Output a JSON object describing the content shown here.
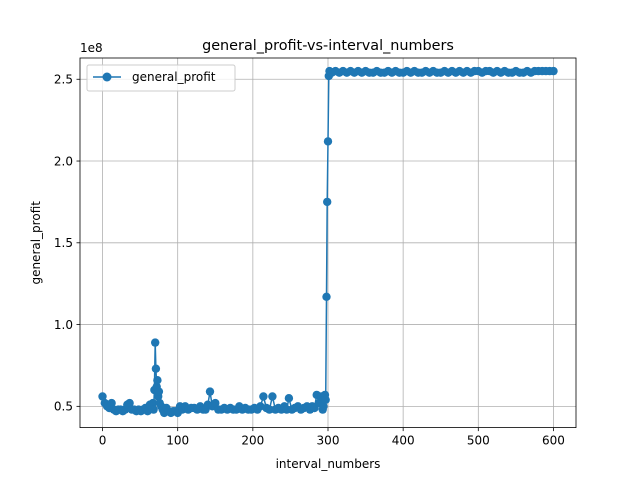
{
  "chart_data": {
    "type": "line",
    "title": "general_profit-vs-interval_numbers",
    "xlabel": "interval_numbers",
    "ylabel": "general_profit",
    "y_offset_label": "1e8",
    "x_ticks": [
      0,
      100,
      200,
      300,
      400,
      500,
      600
    ],
    "x_tick_labels": [
      "0",
      "100",
      "200",
      "300",
      "400",
      "500",
      "600"
    ],
    "y_ticks": [
      0.5,
      1.0,
      1.5,
      2.0,
      2.5
    ],
    "y_tick_labels": [
      "0.5",
      "1.0",
      "1.5",
      "2.0",
      "2.5"
    ],
    "xlim": [
      -30,
      630
    ],
    "ylim": [
      0.37,
      2.63
    ],
    "grid": true,
    "legend_position": "upper-left",
    "series": [
      {
        "name": "general_profit",
        "color": "#1f77b4",
        "marker": "circle",
        "x": [
          0,
          3,
          6,
          9,
          12,
          15,
          18,
          21,
          24,
          27,
          30,
          33,
          36,
          39,
          42,
          45,
          48,
          51,
          54,
          57,
          60,
          63,
          66,
          67,
          68,
          69,
          70,
          71,
          72,
          73,
          74,
          75,
          76,
          78,
          80,
          82,
          85,
          88,
          91,
          94,
          97,
          100,
          103,
          106,
          110,
          114,
          118,
          122,
          126,
          130,
          134,
          137,
          140,
          143,
          146,
          150,
          154,
          158,
          162,
          166,
          170,
          174,
          178,
          182,
          186,
          190,
          194,
          198,
          202,
          206,
          210,
          214,
          218,
          222,
          226,
          230,
          234,
          238,
          242,
          245,
          248,
          252,
          256,
          260,
          264,
          268,
          272,
          276,
          279,
          282,
          285,
          288,
          291,
          293,
          294,
          296,
          297,
          298,
          299,
          300,
          301,
          302,
          305,
          310,
          315,
          320,
          325,
          330,
          335,
          340,
          345,
          350,
          355,
          360,
          365,
          370,
          375,
          380,
          385,
          390,
          395,
          400,
          405,
          410,
          415,
          420,
          425,
          430,
          435,
          440,
          445,
          450,
          455,
          460,
          465,
          470,
          475,
          480,
          485,
          490,
          495,
          500,
          505,
          510,
          515,
          520,
          525,
          530,
          535,
          540,
          545,
          550,
          555,
          560,
          565,
          570,
          575,
          580,
          585,
          590,
          595,
          600
        ],
        "y": [
          0.56,
          0.52,
          0.5,
          0.49,
          0.52,
          0.48,
          0.47,
          0.48,
          0.48,
          0.47,
          0.48,
          0.51,
          0.52,
          0.48,
          0.48,
          0.47,
          0.48,
          0.47,
          0.48,
          0.49,
          0.47,
          0.51,
          0.49,
          0.52,
          0.48,
          0.6,
          0.89,
          0.73,
          0.62,
          0.66,
          0.56,
          0.59,
          0.52,
          0.5,
          0.48,
          0.46,
          0.49,
          0.47,
          0.46,
          0.47,
          0.47,
          0.46,
          0.5,
          0.48,
          0.5,
          0.48,
          0.49,
          0.49,
          0.48,
          0.5,
          0.48,
          0.48,
          0.51,
          0.59,
          0.5,
          0.52,
          0.48,
          0.48,
          0.49,
          0.48,
          0.49,
          0.48,
          0.48,
          0.5,
          0.48,
          0.49,
          0.48,
          0.48,
          0.49,
          0.48,
          0.5,
          0.56,
          0.49,
          0.48,
          0.56,
          0.48,
          0.49,
          0.48,
          0.5,
          0.48,
          0.55,
          0.48,
          0.49,
          0.5,
          0.48,
          0.49,
          0.5,
          0.48,
          0.5,
          0.49,
          0.57,
          0.52,
          0.56,
          0.48,
          0.5,
          0.57,
          0.54,
          1.17,
          1.75,
          2.12,
          2.52,
          2.55,
          2.54,
          2.55,
          2.54,
          2.55,
          2.54,
          2.55,
          2.54,
          2.55,
          2.54,
          2.55,
          2.54,
          2.54,
          2.55,
          2.54,
          2.54,
          2.55,
          2.54,
          2.55,
          2.54,
          2.54,
          2.55,
          2.54,
          2.55,
          2.54,
          2.54,
          2.55,
          2.54,
          2.55,
          2.54,
          2.54,
          2.55,
          2.54,
          2.55,
          2.54,
          2.55,
          2.54,
          2.55,
          2.54,
          2.55,
          2.55,
          2.54,
          2.55,
          2.55,
          2.54,
          2.55,
          2.54,
          2.55,
          2.54,
          2.54,
          2.55,
          2.54,
          2.54,
          2.55,
          2.54,
          2.55,
          2.55,
          2.55,
          2.55,
          2.55,
          2.55
        ]
      }
    ]
  }
}
